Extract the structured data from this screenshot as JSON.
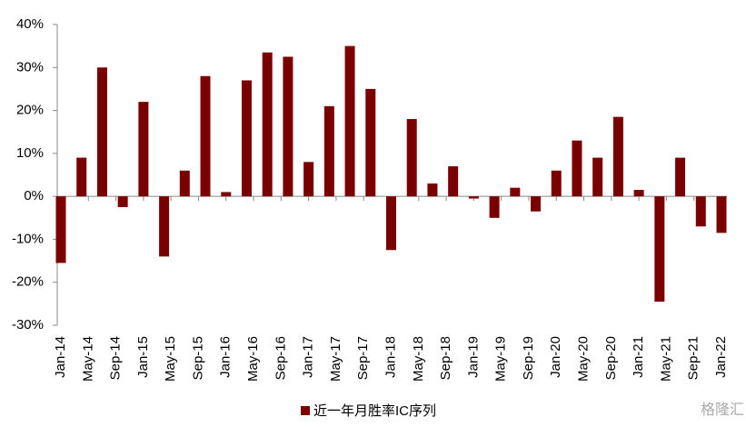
{
  "chart_data": {
    "type": "bar",
    "x": [
      "2014-01",
      "2014-04",
      "2014-07",
      "2014-10",
      "2015-01",
      "2015-04",
      "2015-07",
      "2015-10",
      "2016-01",
      "2016-04",
      "2016-07",
      "2016-10",
      "2017-01",
      "2017-04",
      "2017-07",
      "2017-10",
      "2018-01",
      "2018-04",
      "2018-07",
      "2018-10",
      "2019-01",
      "2019-04",
      "2019-07",
      "2019-10",
      "2020-01",
      "2020-04",
      "2020-07",
      "2020-10",
      "2021-01",
      "2021-04",
      "2021-07",
      "2021-10",
      "2022-01"
    ],
    "series": [
      {
        "name": "近一年月胜率IC序列",
        "color": "#7a0000",
        "values": [
          -15.5,
          9,
          30,
          -2.5,
          22,
          -14,
          6,
          28,
          1,
          27,
          33.5,
          32.5,
          8,
          21,
          35,
          25,
          -12.5,
          18,
          3,
          7,
          -0.5,
          -5,
          2,
          -3.5,
          6,
          13,
          9,
          18.5,
          1.5,
          -24.5,
          9,
          -7,
          -8.5
        ]
      }
    ],
    "ylim": [
      -30,
      40
    ],
    "yticks": [
      {
        "value": -30,
        "label": "-30%"
      },
      {
        "value": -20,
        "label": "-20%"
      },
      {
        "value": -10,
        "label": "-10%"
      },
      {
        "value": 0,
        "label": "0%"
      },
      {
        "value": 10,
        "label": "10%"
      },
      {
        "value": 20,
        "label": "20%"
      },
      {
        "value": 30,
        "label": "30%"
      },
      {
        "value": 40,
        "label": "40%"
      }
    ],
    "xticks": [
      {
        "value": "2014-01",
        "label": "Jan-14"
      },
      {
        "value": "2014-05",
        "label": "May-14"
      },
      {
        "value": "2014-09",
        "label": "Sep-14"
      },
      {
        "value": "2015-01",
        "label": "Jan-15"
      },
      {
        "value": "2015-05",
        "label": "May-15"
      },
      {
        "value": "2015-09",
        "label": "Sep-15"
      },
      {
        "value": "2016-01",
        "label": "Jan-16"
      },
      {
        "value": "2016-05",
        "label": "May-16"
      },
      {
        "value": "2016-09",
        "label": "Sep-16"
      },
      {
        "value": "2017-01",
        "label": "Jan-17"
      },
      {
        "value": "2017-05",
        "label": "May-17"
      },
      {
        "value": "2017-09",
        "label": "Sep-17"
      },
      {
        "value": "2018-01",
        "label": "Jan-18"
      },
      {
        "value": "2018-05",
        "label": "May-18"
      },
      {
        "value": "2018-09",
        "label": "Sep-18"
      },
      {
        "value": "2019-01",
        "label": "Jan-19"
      },
      {
        "value": "2019-05",
        "label": "May-19"
      },
      {
        "value": "2019-09",
        "label": "Sep-19"
      },
      {
        "value": "2020-01",
        "label": "Jan-20"
      },
      {
        "value": "2020-05",
        "label": "May-20"
      },
      {
        "value": "2020-09",
        "label": "Sep-20"
      },
      {
        "value": "2021-01",
        "label": "Jan-21"
      },
      {
        "value": "2021-05",
        "label": "May-21"
      },
      {
        "value": "2021-09",
        "label": "Sep-21"
      },
      {
        "value": "2022-01",
        "label": "Jan-22"
      }
    ],
    "legend": "bottom",
    "watermark": "格隆汇"
  }
}
